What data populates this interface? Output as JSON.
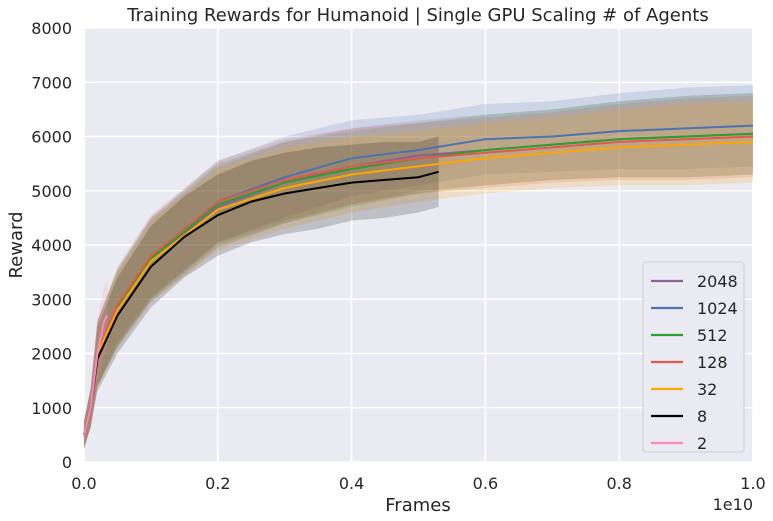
{
  "chart_data": {
    "type": "line",
    "title": "Training Rewards for Humanoid | Single GPU Scaling # of Agents",
    "xlabel": "Frames",
    "ylabel": "Reward",
    "x_offset_label": "1e10",
    "xlim": [
      0,
      1.0
    ],
    "ylim": [
      0,
      8000
    ],
    "x_ticks": [
      0.0,
      0.2,
      0.4,
      0.6,
      0.8,
      1.0
    ],
    "x_tick_labels": [
      "0.0",
      "0.2",
      "0.4",
      "0.6",
      "0.8",
      "1.0"
    ],
    "y_ticks": [
      0,
      1000,
      2000,
      3000,
      4000,
      5000,
      6000,
      7000,
      8000
    ],
    "y_tick_labels": [
      "0",
      "1000",
      "2000",
      "3000",
      "4000",
      "5000",
      "6000",
      "7000",
      "8000"
    ],
    "grid": true,
    "legend_position": "lower-right",
    "background_color": "#eaeaf2",
    "series": [
      {
        "name": "2048",
        "color": "#8c6193",
        "x": [
          0.0,
          0.01,
          0.02,
          0.05,
          0.1,
          0.2,
          0.3,
          0.4,
          0.5,
          0.6,
          0.7,
          0.8,
          0.9,
          1.0
        ],
        "y": [
          500,
          1000,
          2000,
          2800,
          3700,
          4700,
          5150,
          5450,
          5650,
          5750,
          5850,
          5950,
          6000,
          6050
        ],
        "band": [
          250,
          350,
          600,
          700,
          750,
          750,
          750,
          700,
          650,
          650,
          650,
          700,
          750,
          750
        ]
      },
      {
        "name": "1024",
        "color": "#4c72b0",
        "x": [
          0.0,
          0.01,
          0.02,
          0.05,
          0.1,
          0.2,
          0.3,
          0.4,
          0.5,
          0.6,
          0.7,
          0.8,
          0.9,
          1.0
        ],
        "y": [
          500,
          1000,
          2000,
          2850,
          3750,
          4800,
          5250,
          5600,
          5750,
          5950,
          6000,
          6100,
          6150,
          6200
        ],
        "band": [
          250,
          350,
          600,
          700,
          750,
          750,
          750,
          700,
          650,
          650,
          650,
          700,
          750,
          750
        ]
      },
      {
        "name": "512",
        "color": "#2ca02c",
        "x": [
          0.0,
          0.01,
          0.02,
          0.05,
          0.1,
          0.2,
          0.3,
          0.4,
          0.5,
          0.6,
          0.7,
          0.8,
          0.9,
          1.0
        ],
        "y": [
          500,
          1000,
          2000,
          2850,
          3750,
          4750,
          5150,
          5400,
          5600,
          5750,
          5850,
          5950,
          6000,
          6050
        ],
        "band": [
          250,
          350,
          600,
          700,
          750,
          750,
          750,
          700,
          650,
          650,
          650,
          700,
          750,
          750
        ]
      },
      {
        "name": "128",
        "color": "#e05a4f",
        "x": [
          0.0,
          0.01,
          0.02,
          0.05,
          0.1,
          0.2,
          0.3,
          0.4,
          0.5,
          0.6,
          0.7,
          0.8,
          0.9,
          1.0
        ],
        "y": [
          500,
          1000,
          2000,
          2900,
          3800,
          4800,
          5200,
          5450,
          5600,
          5700,
          5800,
          5900,
          5950,
          6000
        ],
        "band": [
          250,
          350,
          600,
          700,
          750,
          750,
          750,
          700,
          650,
          650,
          650,
          700,
          750,
          750
        ]
      },
      {
        "name": "32",
        "color": "#ffa500",
        "x": [
          0.0,
          0.01,
          0.02,
          0.05,
          0.1,
          0.2,
          0.3,
          0.4,
          0.5,
          0.6,
          0.7,
          0.8,
          0.9,
          1.0
        ],
        "y": [
          500,
          1000,
          2000,
          2800,
          3700,
          4650,
          5050,
          5300,
          5450,
          5600,
          5700,
          5800,
          5850,
          5900
        ],
        "band": [
          250,
          350,
          600,
          700,
          750,
          750,
          750,
          700,
          650,
          650,
          650,
          700,
          750,
          750
        ]
      },
      {
        "name": "8",
        "color": "#000000",
        "x": [
          0.0,
          0.01,
          0.02,
          0.05,
          0.1,
          0.15,
          0.2,
          0.25,
          0.3,
          0.35,
          0.4,
          0.45,
          0.5,
          0.53
        ],
        "y": [
          500,
          1000,
          1900,
          2700,
          3600,
          4150,
          4550,
          4800,
          4950,
          5050,
          5150,
          5200,
          5250,
          5350
        ],
        "band": [
          250,
          350,
          600,
          700,
          750,
          750,
          750,
          750,
          750,
          750,
          700,
          700,
          650,
          650
        ]
      },
      {
        "name": "2",
        "color": "#ff88bb",
        "x": [
          0.0,
          0.01,
          0.02,
          0.03,
          0.035
        ],
        "y": [
          500,
          1000,
          2000,
          2600,
          2700
        ],
        "band": [
          250,
          350,
          600,
          650,
          650
        ]
      }
    ]
  }
}
